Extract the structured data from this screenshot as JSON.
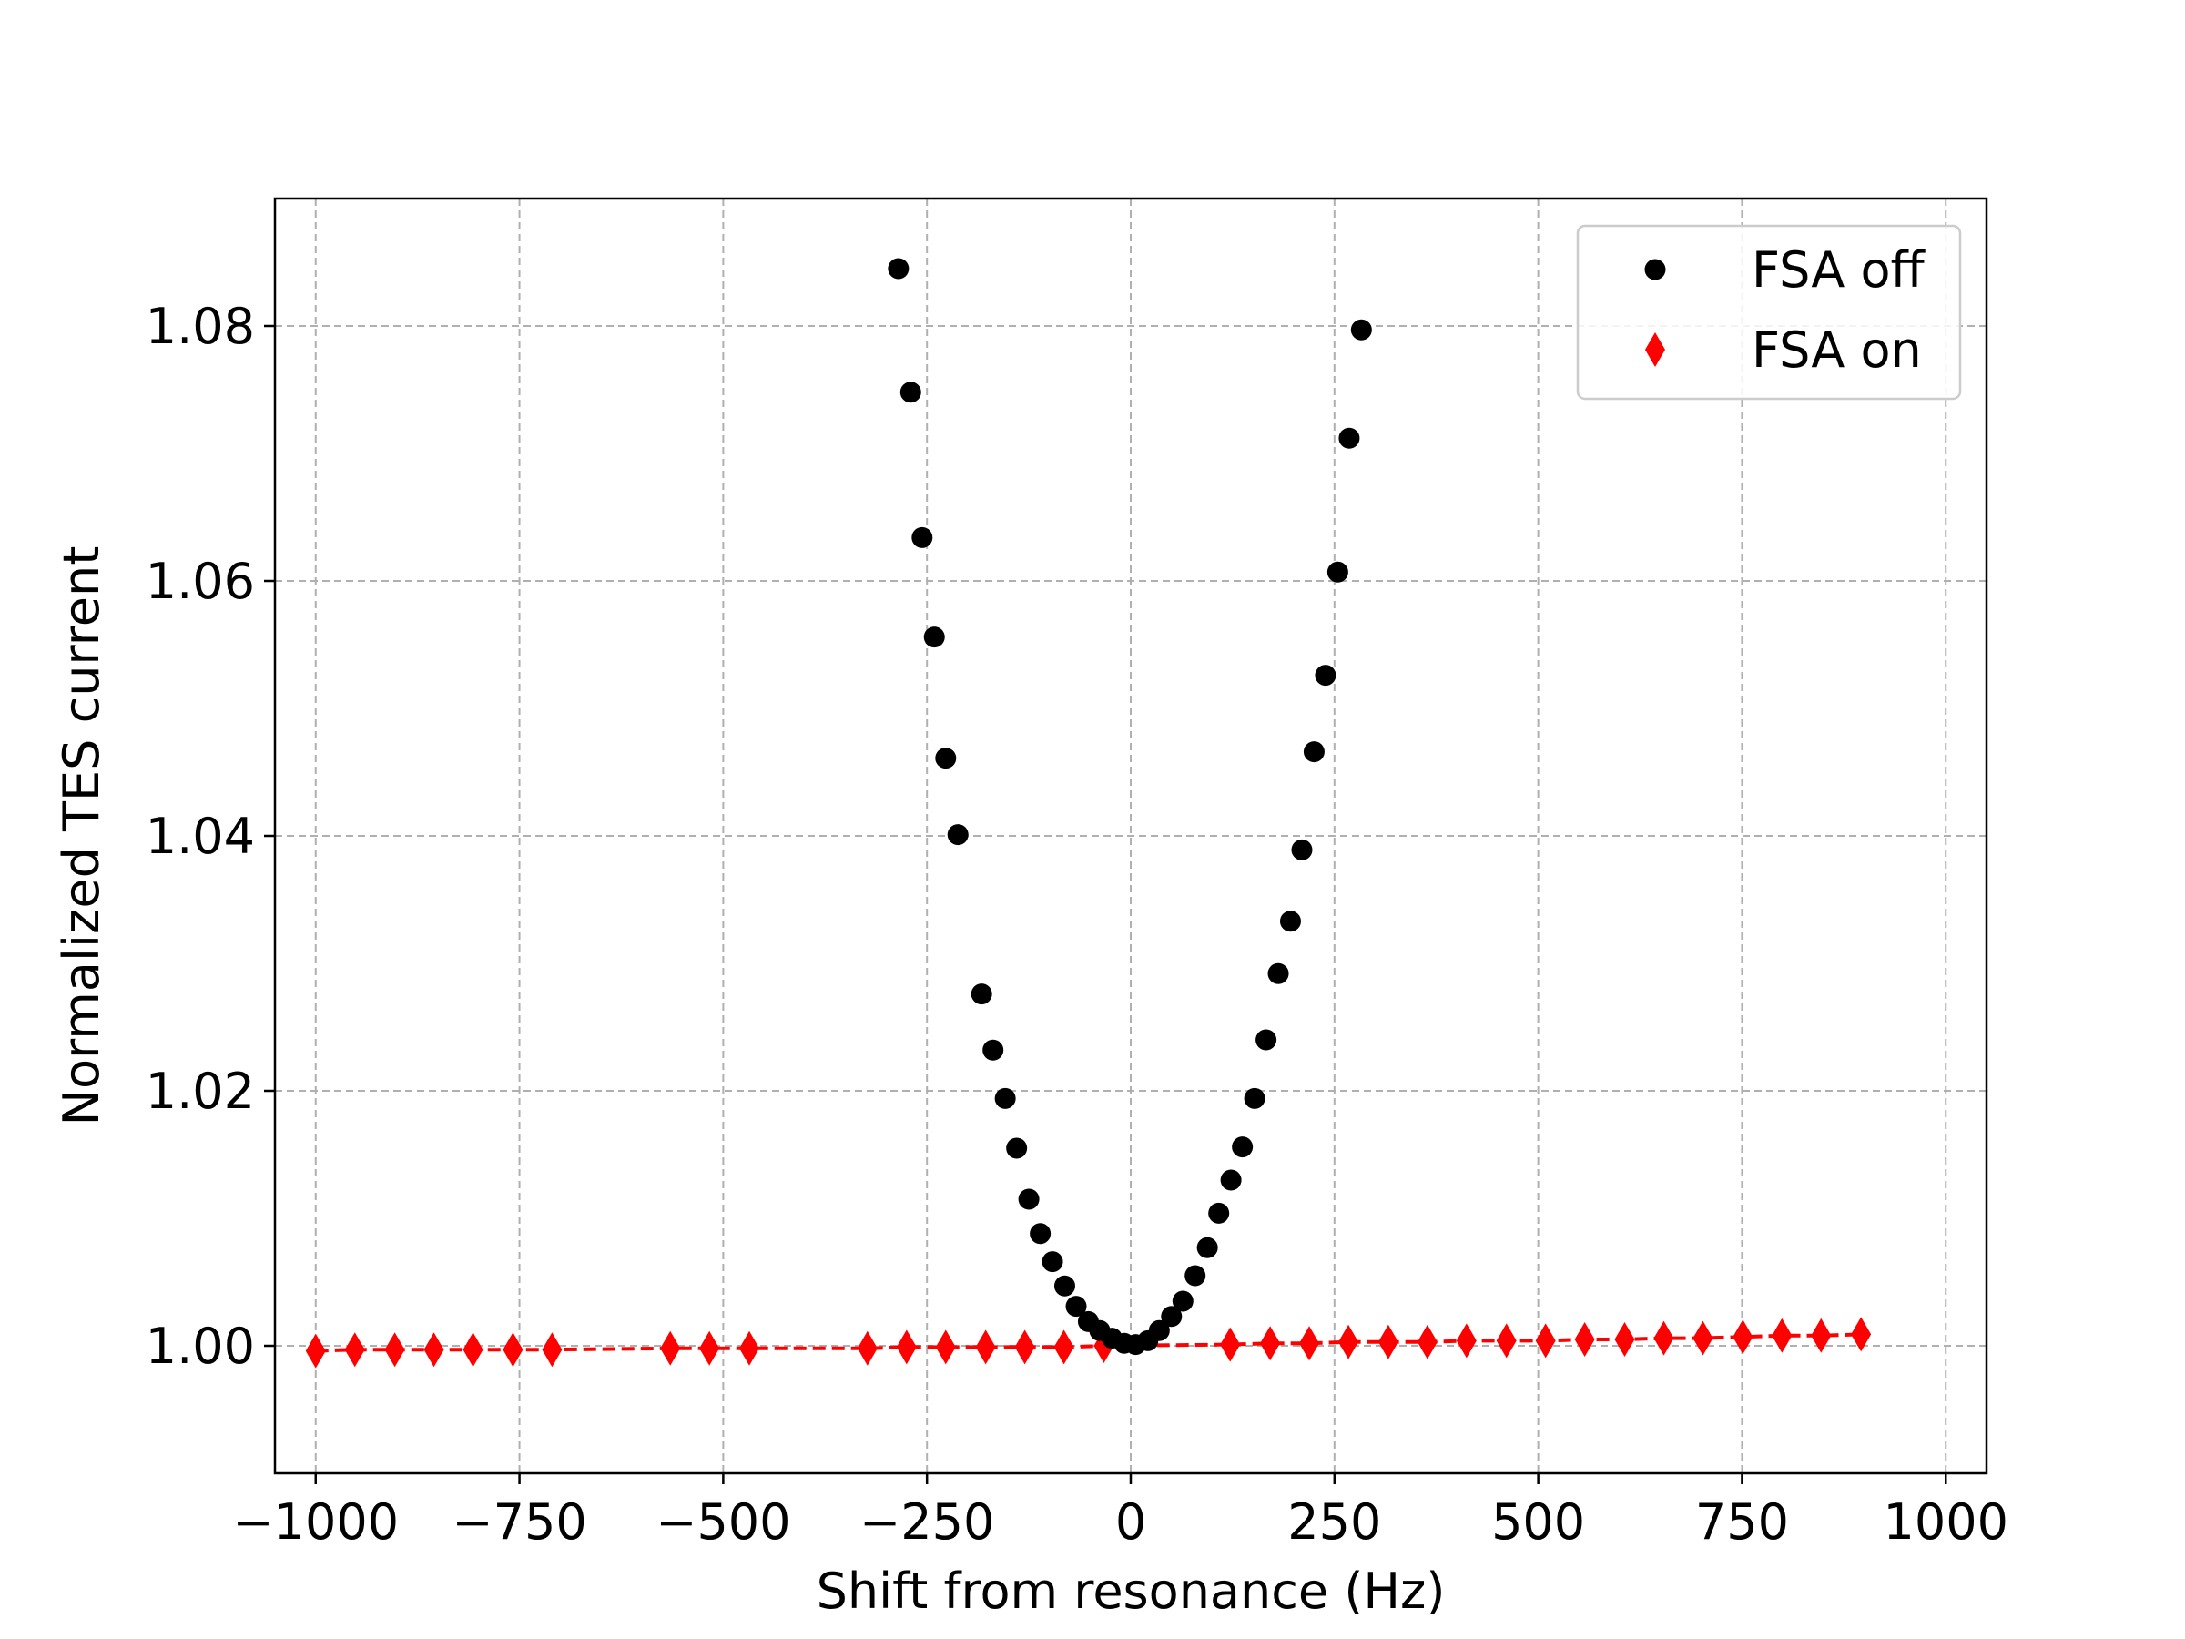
{
  "chart_data": {
    "type": "scatter",
    "title": "",
    "xlabel": "Shift from resonance (Hz)",
    "ylabel": "Normalized TES current",
    "xlim": [
      -1050,
      1050
    ],
    "ylim": [
      0.99,
      1.09
    ],
    "xticks": [
      -1000,
      -750,
      -500,
      -250,
      0,
      250,
      500,
      750,
      1000
    ],
    "xtick_labels": [
      "−1000",
      "−750",
      "−500",
      "−250",
      "0",
      "250",
      "500",
      "750",
      "1000"
    ],
    "yticks": [
      1.0,
      1.02,
      1.04,
      1.06,
      1.08
    ],
    "ytick_labels": [
      "1.00",
      "1.02",
      "1.04",
      "1.06",
      "1.08"
    ],
    "grid": true,
    "legend_position": "top-right",
    "series": [
      {
        "name": "FSA off",
        "marker": "circle",
        "color": "#000000",
        "x": [
          -285,
          -270,
          -256,
          -241,
          -227,
          -212,
          -183,
          -169,
          -154,
          -140,
          -125,
          -111,
          -96,
          -81,
          -67,
          -52,
          -38,
          -23,
          -8,
          6,
          21,
          35,
          50,
          64,
          79,
          94,
          108,
          123,
          137,
          152,
          166,
          181,
          196,
          210,
          225,
          239,
          254,
          268,
          283
        ],
        "y": [
          1.0845,
          1.0748,
          1.0634,
          1.0556,
          1.0461,
          1.0401,
          1.0276,
          1.0232,
          1.0194,
          1.0155,
          1.0115,
          1.0088,
          1.0066,
          1.0047,
          1.0031,
          1.0019,
          1.0012,
          1.0006,
          1.0002,
          1.0001,
          1.0004,
          1.0012,
          1.0023,
          1.0035,
          1.0055,
          1.0077,
          1.0104,
          1.013,
          1.0156,
          1.0194,
          1.024,
          1.0292,
          1.0333,
          1.0389,
          1.0466,
          1.0526,
          1.0607,
          1.0712,
          1.0797
        ]
      },
      {
        "name": "FSA on",
        "marker": "diamond",
        "color": "#ff0000",
        "line": "dashed",
        "x": [
          -1000,
          -952,
          -903,
          -855,
          -807,
          -758,
          -710,
          -565,
          -517,
          -468,
          -323,
          -275,
          -227,
          -178,
          -130,
          -82,
          -33,
          122,
          171,
          219,
          267,
          316,
          364,
          412,
          461,
          509,
          557,
          606,
          654,
          702,
          751,
          799,
          847,
          896
        ],
        "y": [
          0.9996,
          0.9997,
          0.9997,
          0.9997,
          0.9997,
          0.9997,
          0.9997,
          0.9998,
          0.9998,
          0.9998,
          0.9998,
          0.9999,
          0.9999,
          0.9999,
          0.9999,
          0.9999,
          1.0,
          1.0001,
          1.0002,
          1.0002,
          1.0003,
          1.0003,
          1.0003,
          1.0004,
          1.0004,
          1.0004,
          1.0005,
          1.0005,
          1.0006,
          1.0006,
          1.0007,
          1.0008,
          1.0008,
          1.0009
        ]
      }
    ]
  }
}
